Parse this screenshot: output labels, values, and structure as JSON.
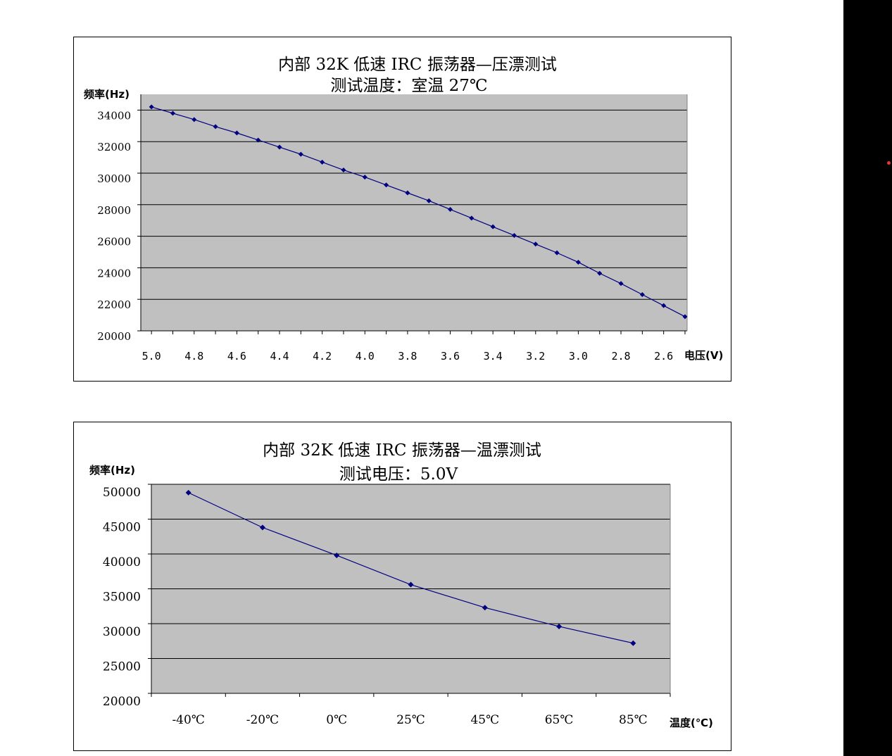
{
  "colors": {
    "plot_bg": "#c0c0c0",
    "line": "#000080",
    "grid": "#000000",
    "page_bg": "#ffffff"
  },
  "chart_data": [
    {
      "type": "line",
      "title": "内部 32K 低速 IRC 振荡器—压漂测试",
      "subtitle": "测试温度：室温 27℃",
      "xlabel": "电压(V)",
      "ylabel": "频率(Hz)",
      "x_reversed": true,
      "xlim": [
        5.05,
        2.49
      ],
      "ylim": [
        20000,
        35000
      ],
      "y_ticks": [
        20000,
        22000,
        24000,
        26000,
        28000,
        30000,
        32000,
        34000
      ],
      "x_tick_labels": [
        "5.0",
        "4.8",
        "4.6",
        "4.4",
        "4.2",
        "4.0",
        "3.8",
        "3.6",
        "3.4",
        "3.2",
        "3.0",
        "2.8",
        "2.6"
      ],
      "grid": true,
      "legend": "none",
      "series": [
        {
          "x": [
            5.0,
            4.9,
            4.8,
            4.7,
            4.6,
            4.5,
            4.4,
            4.3,
            4.2,
            4.1,
            4.0,
            3.9,
            3.8,
            3.7,
            3.6,
            3.5,
            3.4,
            3.3,
            3.2,
            3.1,
            3.0,
            2.9,
            2.8,
            2.7,
            2.6,
            2.5
          ],
          "values": [
            34200,
            33800,
            33400,
            32950,
            32550,
            32100,
            31650,
            31200,
            30700,
            30200,
            29750,
            29250,
            28750,
            28250,
            27700,
            27150,
            26600,
            26050,
            25500,
            24950,
            24350,
            23650,
            23000,
            22300,
            21600,
            20900
          ]
        }
      ]
    },
    {
      "type": "line",
      "title": "内部 32K 低速 IRC 振荡器—温漂测试",
      "subtitle": "测试电压：5.0V",
      "xlabel": "温度(℃)",
      "ylabel": "频率(Hz)",
      "ylim": [
        20000,
        50000
      ],
      "y_ticks": [
        20000,
        25000,
        30000,
        35000,
        40000,
        45000,
        50000
      ],
      "categories": [
        "-40℃",
        "-20℃",
        "0℃",
        "25℃",
        "45℃",
        "65℃",
        "85℃"
      ],
      "grid": true,
      "legend": "none",
      "series": [
        {
          "values": [
            48800,
            43800,
            39800,
            35600,
            32300,
            29600,
            27200
          ]
        }
      ]
    }
  ]
}
